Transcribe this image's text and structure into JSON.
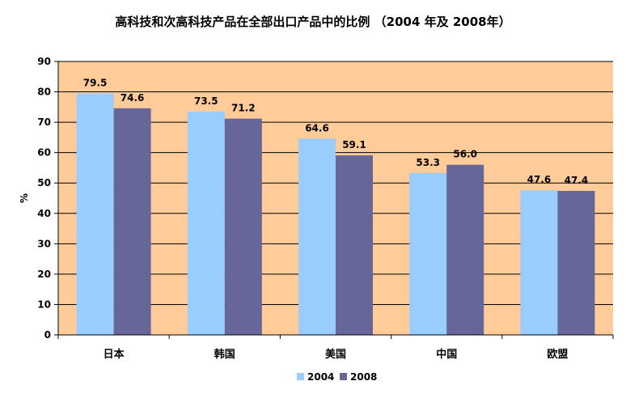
{
  "chart_data": {
    "type": "bar",
    "title": "高科技和次高科技产品在全部出口产品中的比例 （2004 年及 2008年）",
    "ylabel": "%",
    "ylim": [
      0,
      90
    ],
    "yticks": [
      0,
      10,
      20,
      30,
      40,
      50,
      60,
      70,
      80,
      90
    ],
    "categories": [
      "日本",
      "韩国",
      "美国",
      "中国",
      "欧盟"
    ],
    "series": [
      {
        "name": "2004",
        "color": "#99ccff",
        "values": [
          79.5,
          73.5,
          64.6,
          53.3,
          47.6
        ]
      },
      {
        "name": "2008",
        "color": "#666699",
        "values": [
          74.6,
          71.2,
          59.1,
          56.0,
          47.4
        ]
      }
    ],
    "plot_background": "#ffcc99",
    "grid": true,
    "legend_position": "bottom"
  }
}
